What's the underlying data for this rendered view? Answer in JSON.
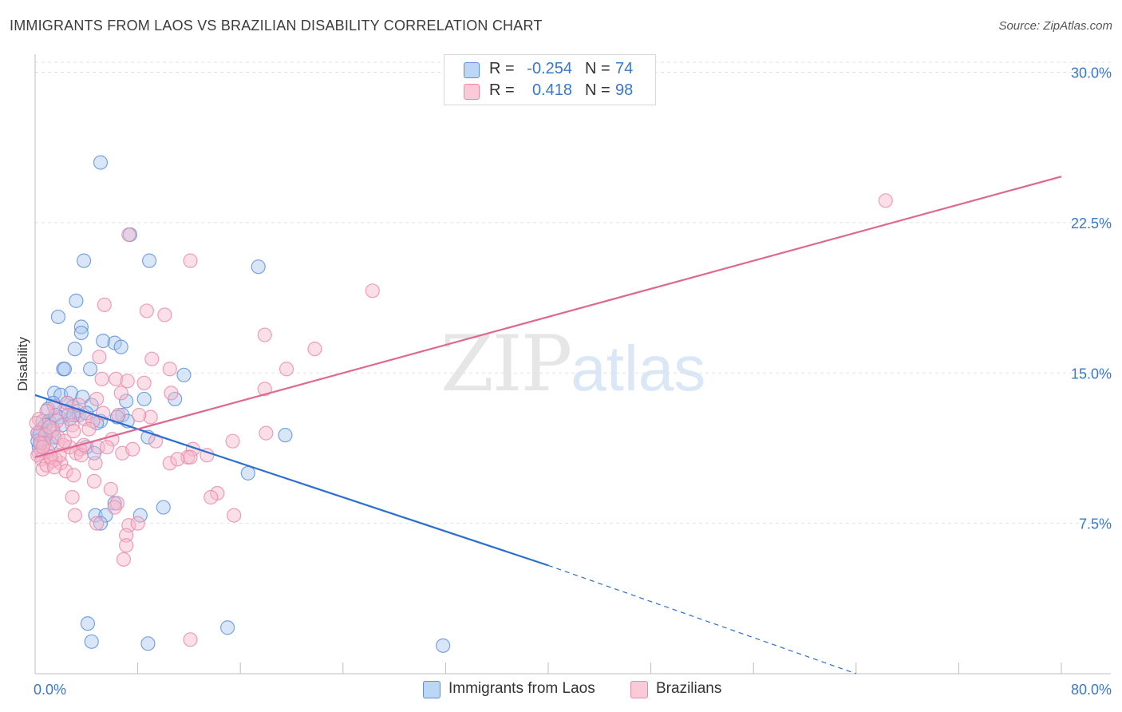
{
  "header": {
    "title": "IMMIGRANTS FROM LAOS VS BRAZILIAN DISABILITY CORRELATION CHART",
    "source": "Source: ZipAtlas.com"
  },
  "legend": {
    "series1": {
      "r_label": "R =",
      "r_value": "-0.254",
      "n_label": "N =",
      "n_value": "74"
    },
    "series2": {
      "r_label": "R =",
      "r_value": "0.418",
      "n_label": "N =",
      "n_value": "98"
    }
  },
  "bottom_legend": {
    "series1_label": "Immigrants from Laos",
    "series2_label": "Brazilians"
  },
  "watermark": {
    "zip": "ZIP",
    "atlas": "atlas"
  },
  "colors": {
    "series1_fill": "#a8c8f0",
    "series1_stroke": "#5b8fd8",
    "series1_line": "#2a6fd0",
    "series2_fill": "#f7b8cc",
    "series2_stroke": "#e88aa8",
    "series2_line": "#e06890",
    "tick_label": "#3a78c8",
    "grid": "#e2e2e2"
  },
  "chart_data": {
    "type": "scatter",
    "title": "IMMIGRANTS FROM LAOS VS BRAZILIAN DISABILITY CORRELATION CHART",
    "xlabel": "",
    "ylabel": "Disability",
    "xlim": [
      0,
      80
    ],
    "ylim": [
      0,
      30.5
    ],
    "x_tick_labels": [
      "0.0%",
      "80.0%"
    ],
    "y_ticks": [
      7.5,
      15.0,
      22.5,
      30.0
    ],
    "y_tick_labels": [
      "7.5%",
      "15.0%",
      "22.5%",
      "30.0%"
    ],
    "grid": true,
    "legend_position": "top-center",
    "series": [
      {
        "name": "Immigrants from Laos",
        "r": -0.254,
        "n": 74,
        "trend": {
          "x0": 0,
          "y0": 13.9,
          "x1": 40,
          "y1": 5.4,
          "dash_to_x": 64,
          "dash_to_y": 0
        },
        "points": [
          [
            5.1,
            25.5
          ],
          [
            7.4,
            21.9
          ],
          [
            3.8,
            20.6
          ],
          [
            8.9,
            20.6
          ],
          [
            17.4,
            20.3
          ],
          [
            3.2,
            18.6
          ],
          [
            1.8,
            17.8
          ],
          [
            3.6,
            17.3
          ],
          [
            3.6,
            17.0
          ],
          [
            5.3,
            16.6
          ],
          [
            6.2,
            16.5
          ],
          [
            6.7,
            16.3
          ],
          [
            3.1,
            16.2
          ],
          [
            2.2,
            15.2
          ],
          [
            2.3,
            15.2
          ],
          [
            4.3,
            15.2
          ],
          [
            11.6,
            14.9
          ],
          [
            1.5,
            14.0
          ],
          [
            2.0,
            13.9
          ],
          [
            2.8,
            14.0
          ],
          [
            3.7,
            13.8
          ],
          [
            8.5,
            13.7
          ],
          [
            10.9,
            13.7
          ],
          [
            7.1,
            13.6
          ],
          [
            1.4,
            13.5
          ],
          [
            1.0,
            13.2
          ],
          [
            2.5,
            13.5
          ],
          [
            2.9,
            13.3
          ],
          [
            4.4,
            13.4
          ],
          [
            3.3,
            13.1
          ],
          [
            3.4,
            12.9
          ],
          [
            4.0,
            13.0
          ],
          [
            6.8,
            12.9
          ],
          [
            0.6,
            12.6
          ],
          [
            1.1,
            12.6
          ],
          [
            2.7,
            12.7
          ],
          [
            5.1,
            12.6
          ],
          [
            7.2,
            12.6
          ],
          [
            0.5,
            12.2
          ],
          [
            1.4,
            12.2
          ],
          [
            0.3,
            11.9
          ],
          [
            1.5,
            11.8
          ],
          [
            0.4,
            11.6
          ],
          [
            0.7,
            11.7
          ],
          [
            0.3,
            11.3
          ],
          [
            8.8,
            11.8
          ],
          [
            19.5,
            11.9
          ],
          [
            4.0,
            11.3
          ],
          [
            4.6,
            11.0
          ],
          [
            16.6,
            10.0
          ],
          [
            10.0,
            8.3
          ],
          [
            8.2,
            7.9
          ],
          [
            6.2,
            8.5
          ],
          [
            4.7,
            7.9
          ],
          [
            5.5,
            7.9
          ],
          [
            5.1,
            7.5
          ],
          [
            4.1,
            2.5
          ],
          [
            4.4,
            1.6
          ],
          [
            8.8,
            1.5
          ],
          [
            15.0,
            2.3
          ],
          [
            31.8,
            1.4
          ],
          [
            0.2,
            12.0
          ],
          [
            0.8,
            12.4
          ],
          [
            1.9,
            12.8
          ],
          [
            2.4,
            13.1
          ],
          [
            3.0,
            12.9
          ],
          [
            0.4,
            12.0
          ],
          [
            1.2,
            11.5
          ],
          [
            0.5,
            11.1
          ],
          [
            6.4,
            12.8
          ],
          [
            4.8,
            12.5
          ],
          [
            0.2,
            11.6
          ],
          [
            1.6,
            12.9
          ],
          [
            2.1,
            12.4
          ]
        ]
      },
      {
        "name": "Brazilians",
        "r": 0.418,
        "n": 98,
        "trend": {
          "x0": 0,
          "y0": 10.8,
          "x1": 80,
          "y1": 24.8
        },
        "points": [
          [
            66.3,
            23.6
          ],
          [
            7.3,
            21.9
          ],
          [
            12.1,
            20.6
          ],
          [
            26.3,
            19.1
          ],
          [
            8.7,
            18.1
          ],
          [
            5.4,
            18.4
          ],
          [
            10.1,
            17.9
          ],
          [
            17.9,
            16.9
          ],
          [
            21.8,
            16.2
          ],
          [
            5.0,
            15.8
          ],
          [
            9.1,
            15.7
          ],
          [
            10.5,
            15.2
          ],
          [
            19.6,
            15.2
          ],
          [
            5.2,
            14.7
          ],
          [
            6.3,
            14.7
          ],
          [
            7.2,
            14.6
          ],
          [
            8.5,
            14.5
          ],
          [
            17.9,
            14.2
          ],
          [
            6.7,
            14.0
          ],
          [
            10.6,
            14.0
          ],
          [
            4.8,
            13.7
          ],
          [
            2.5,
            13.5
          ],
          [
            3.4,
            13.4
          ],
          [
            1.5,
            13.3
          ],
          [
            0.9,
            13.1
          ],
          [
            2.6,
            12.9
          ],
          [
            3.9,
            12.7
          ],
          [
            9.0,
            12.8
          ],
          [
            4.5,
            12.6
          ],
          [
            6.5,
            12.9
          ],
          [
            1.7,
            12.6
          ],
          [
            0.3,
            12.7
          ],
          [
            2.9,
            12.4
          ],
          [
            0.2,
            12.0
          ],
          [
            1.4,
            12.1
          ],
          [
            3.0,
            12.1
          ],
          [
            0.8,
            11.9
          ],
          [
            1.8,
            11.8
          ],
          [
            6.0,
            11.7
          ],
          [
            9.4,
            11.6
          ],
          [
            15.4,
            11.6
          ],
          [
            18.0,
            12.0
          ],
          [
            0.7,
            11.5
          ],
          [
            2.2,
            11.4
          ],
          [
            3.5,
            11.2
          ],
          [
            4.9,
            11.3
          ],
          [
            1.0,
            11.1
          ],
          [
            0.3,
            11.0
          ],
          [
            2.7,
            11.3
          ],
          [
            3.2,
            11.0
          ],
          [
            6.8,
            11.0
          ],
          [
            12.3,
            11.2
          ],
          [
            0.5,
            10.7
          ],
          [
            1.3,
            10.6
          ],
          [
            2.0,
            10.5
          ],
          [
            1.6,
            10.7
          ],
          [
            3.6,
            10.9
          ],
          [
            4.7,
            10.5
          ],
          [
            10.5,
            10.5
          ],
          [
            11.9,
            10.8
          ],
          [
            12.1,
            10.8
          ],
          [
            11.1,
            10.7
          ],
          [
            0.6,
            10.2
          ],
          [
            2.4,
            10.1
          ],
          [
            3.0,
            9.9
          ],
          [
            4.6,
            9.6
          ],
          [
            14.2,
            9.0
          ],
          [
            5.9,
            9.2
          ],
          [
            6.4,
            8.5
          ],
          [
            13.7,
            8.8
          ],
          [
            2.9,
            8.8
          ],
          [
            3.1,
            7.9
          ],
          [
            6.2,
            8.3
          ],
          [
            15.5,
            7.9
          ],
          [
            7.3,
            7.4
          ],
          [
            8.0,
            7.5
          ],
          [
            4.8,
            7.5
          ],
          [
            7.1,
            6.9
          ],
          [
            7.1,
            6.4
          ],
          [
            6.9,
            5.7
          ],
          [
            12.1,
            1.7
          ],
          [
            0.1,
            12.5
          ],
          [
            0.4,
            11.5
          ],
          [
            1.1,
            12.3
          ],
          [
            1.9,
            10.9
          ],
          [
            2.3,
            11.6
          ],
          [
            0.9,
            10.4
          ],
          [
            1.2,
            10.8
          ],
          [
            3.8,
            11.4
          ],
          [
            5.6,
            11.3
          ],
          [
            7.6,
            11.2
          ],
          [
            0.2,
            10.9
          ],
          [
            0.6,
            11.3
          ],
          [
            1.5,
            10.3
          ],
          [
            4.2,
            12.2
          ],
          [
            5.3,
            13.0
          ],
          [
            8.1,
            12.9
          ],
          [
            13.4,
            10.9
          ]
        ]
      }
    ]
  }
}
